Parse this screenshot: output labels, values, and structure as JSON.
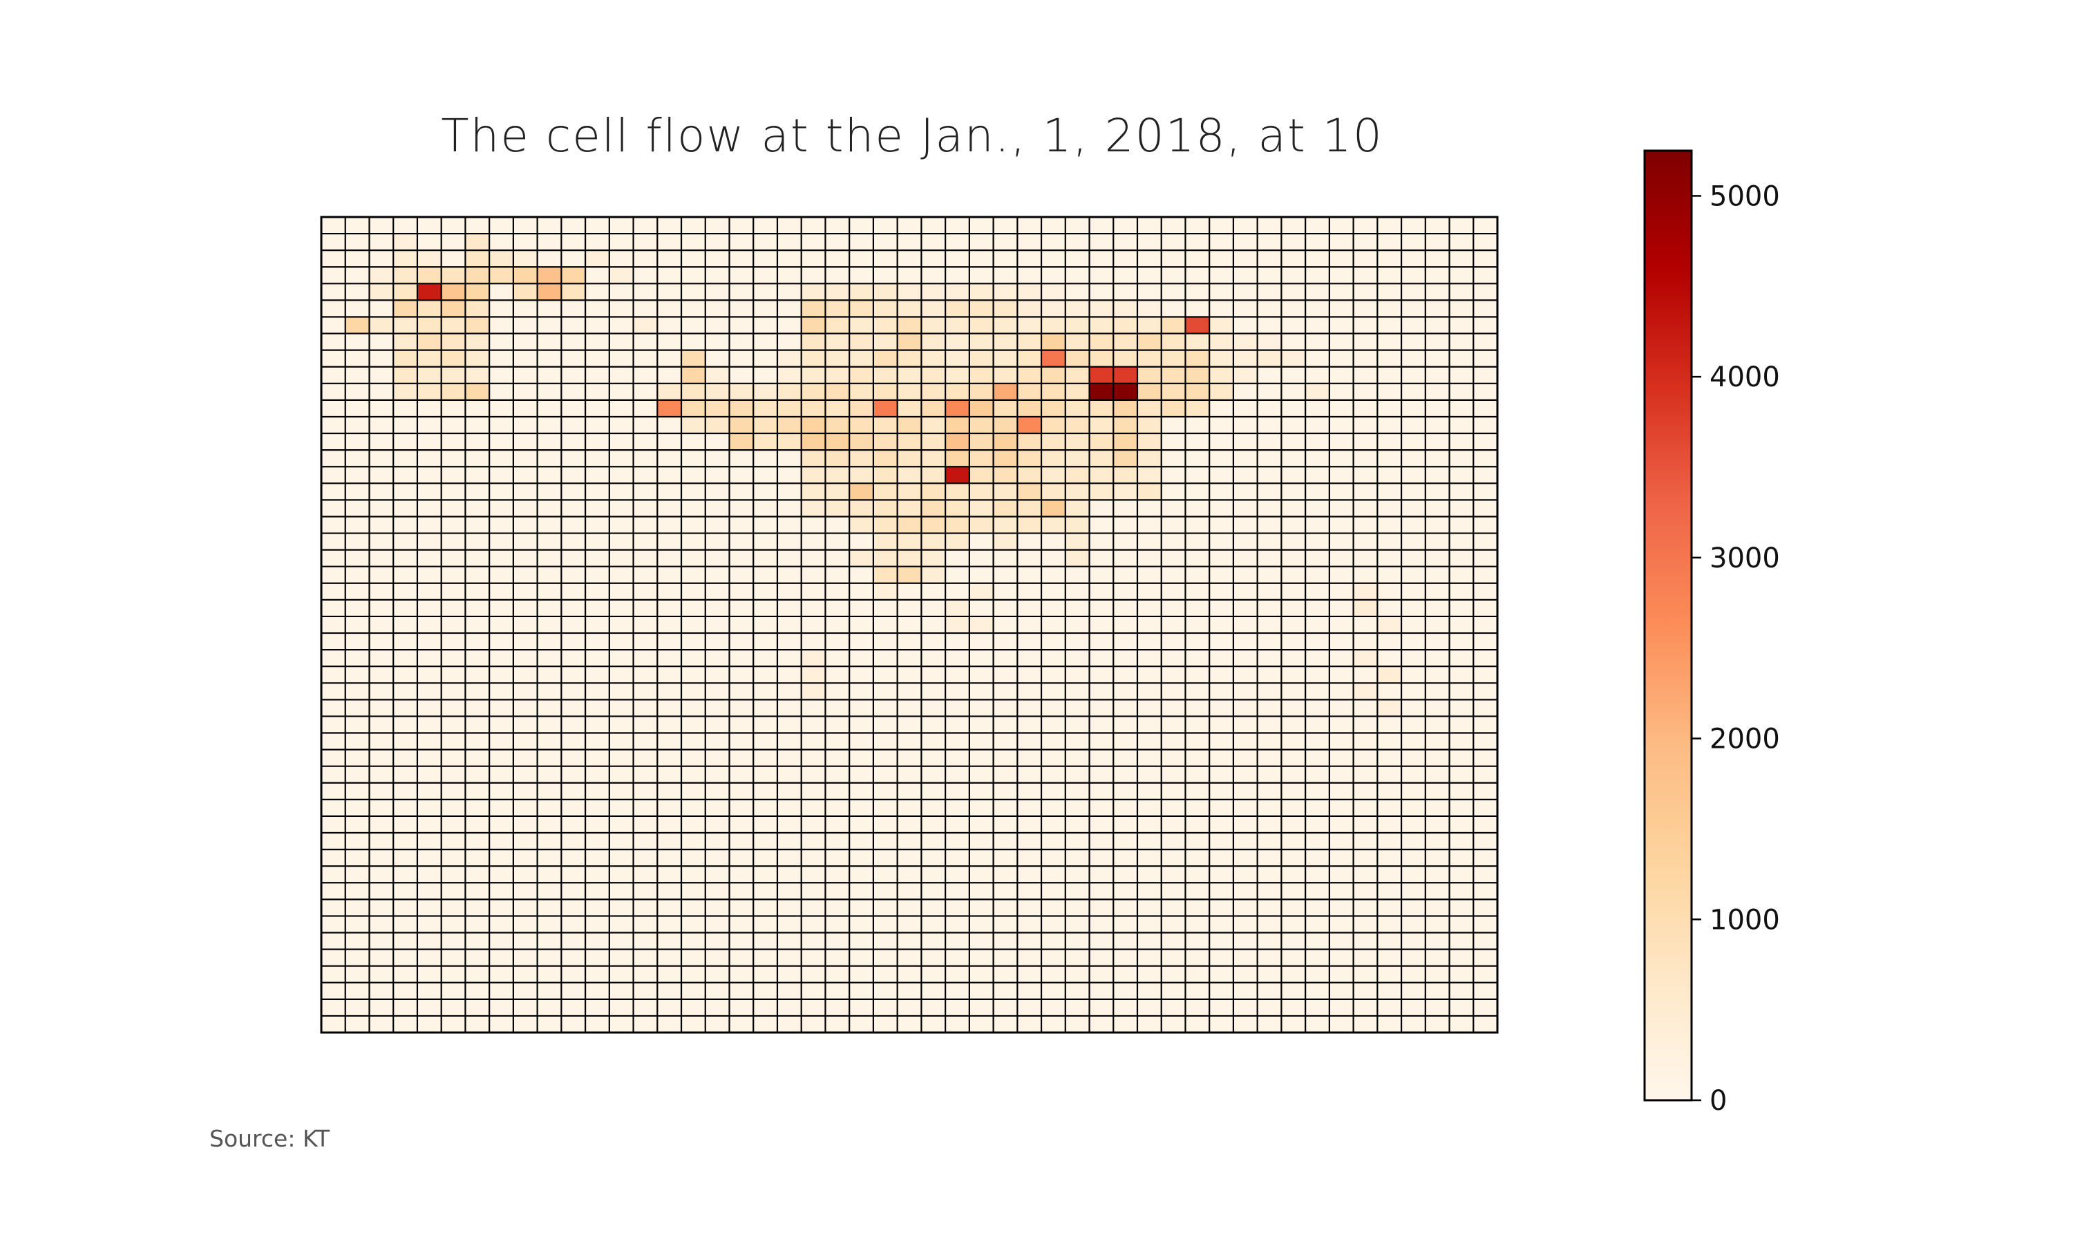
{
  "source_note": "Source: KT",
  "chart_data": {
    "type": "heatmap",
    "title": "The cell flow at the Jan., 1, 2018, at 10",
    "xlabel": "",
    "ylabel": "",
    "grid": true,
    "n_cols": 49,
    "n_rows": 49,
    "colormap": "OrRd",
    "colormap_stops": [
      "#fff7ec",
      "#fee8c8",
      "#fdd49e",
      "#fdbb84",
      "#fc8d59",
      "#ef6548",
      "#d7301f",
      "#b30000",
      "#7f0000"
    ],
    "grid_line_color": "#000000",
    "colorbar": {
      "range": [
        0,
        5250
      ],
      "ticks": [
        0,
        1000,
        2000,
        3000,
        4000,
        5000
      ],
      "tick_labels": [
        "0",
        "1000",
        "2000",
        "3000",
        "4000",
        "5000"
      ],
      "position": "right"
    },
    "baseline_value": 100,
    "cells": [
      [
        1,
        3,
        300
      ],
      [
        1,
        6,
        600
      ],
      [
        2,
        3,
        400
      ],
      [
        2,
        4,
        300
      ],
      [
        2,
        6,
        700
      ],
      [
        2,
        7,
        500
      ],
      [
        2,
        8,
        300
      ],
      [
        2,
        11,
        300
      ],
      [
        3,
        2,
        300
      ],
      [
        3,
        3,
        600
      ],
      [
        3,
        4,
        900
      ],
      [
        3,
        5,
        800
      ],
      [
        3,
        6,
        1000
      ],
      [
        3,
        7,
        900
      ],
      [
        3,
        8,
        1200
      ],
      [
        3,
        9,
        1800
      ],
      [
        3,
        10,
        1200
      ],
      [
        3,
        12,
        300
      ],
      [
        4,
        2,
        400
      ],
      [
        4,
        3,
        700
      ],
      [
        4,
        4,
        4200
      ],
      [
        4,
        5,
        1700
      ],
      [
        4,
        6,
        1200
      ],
      [
        4,
        8,
        800
      ],
      [
        4,
        9,
        2000
      ],
      [
        4,
        10,
        800
      ],
      [
        4,
        20,
        400
      ],
      [
        4,
        21,
        400
      ],
      [
        4,
        22,
        500
      ],
      [
        4,
        23,
        500
      ],
      [
        4,
        24,
        300
      ],
      [
        4,
        25,
        300
      ],
      [
        4,
        26,
        300
      ],
      [
        4,
        27,
        400
      ],
      [
        4,
        28,
        300
      ],
      [
        4,
        29,
        300
      ],
      [
        4,
        30,
        200
      ],
      [
        5,
        3,
        1100
      ],
      [
        5,
        4,
        800
      ],
      [
        5,
        5,
        1200
      ],
      [
        5,
        6,
        700
      ],
      [
        5,
        20,
        1000
      ],
      [
        5,
        21,
        800
      ],
      [
        5,
        22,
        800
      ],
      [
        5,
        23,
        600
      ],
      [
        5,
        24,
        500
      ],
      [
        5,
        25,
        400
      ],
      [
        5,
        26,
        700
      ],
      [
        5,
        27,
        700
      ],
      [
        5,
        28,
        600
      ],
      [
        5,
        29,
        400
      ],
      [
        5,
        30,
        300
      ],
      [
        5,
        31,
        300
      ],
      [
        5,
        32,
        300
      ],
      [
        5,
        33,
        300
      ],
      [
        5,
        34,
        200
      ],
      [
        6,
        1,
        1200
      ],
      [
        6,
        2,
        500
      ],
      [
        6,
        3,
        500
      ],
      [
        6,
        4,
        700
      ],
      [
        6,
        5,
        600
      ],
      [
        6,
        6,
        900
      ],
      [
        6,
        13,
        300
      ],
      [
        6,
        20,
        1100
      ],
      [
        6,
        21,
        700
      ],
      [
        6,
        22,
        500
      ],
      [
        6,
        23,
        600
      ],
      [
        6,
        24,
        900
      ],
      [
        6,
        25,
        500
      ],
      [
        6,
        26,
        500
      ],
      [
        6,
        27,
        600
      ],
      [
        6,
        28,
        500
      ],
      [
        6,
        29,
        400
      ],
      [
        6,
        30,
        500
      ],
      [
        6,
        31,
        500
      ],
      [
        6,
        32,
        500
      ],
      [
        6,
        33,
        600
      ],
      [
        6,
        34,
        500
      ],
      [
        6,
        35,
        900
      ],
      [
        6,
        36,
        3600
      ],
      [
        6,
        37,
        400
      ],
      [
        7,
        3,
        500
      ],
      [
        7,
        4,
        900
      ],
      [
        7,
        5,
        700
      ],
      [
        7,
        6,
        500
      ],
      [
        7,
        20,
        700
      ],
      [
        7,
        21,
        500
      ],
      [
        7,
        22,
        600
      ],
      [
        7,
        23,
        500
      ],
      [
        7,
        24,
        1100
      ],
      [
        7,
        25,
        500
      ],
      [
        7,
        26,
        400
      ],
      [
        7,
        27,
        500
      ],
      [
        7,
        28,
        500
      ],
      [
        7,
        29,
        600
      ],
      [
        7,
        30,
        1300
      ],
      [
        7,
        31,
        600
      ],
      [
        7,
        32,
        800
      ],
      [
        7,
        33,
        700
      ],
      [
        7,
        34,
        1000
      ],
      [
        7,
        35,
        700
      ],
      [
        7,
        36,
        500
      ],
      [
        7,
        37,
        400
      ],
      [
        7,
        38,
        300
      ],
      [
        7,
        39,
        200
      ],
      [
        8,
        3,
        700
      ],
      [
        8,
        4,
        600
      ],
      [
        8,
        5,
        800
      ],
      [
        8,
        6,
        500
      ],
      [
        8,
        15,
        1000
      ],
      [
        8,
        19,
        300
      ],
      [
        8,
        20,
        600
      ],
      [
        8,
        21,
        500
      ],
      [
        8,
        22,
        500
      ],
      [
        8,
        23,
        900
      ],
      [
        8,
        24,
        700
      ],
      [
        8,
        25,
        500
      ],
      [
        8,
        26,
        400
      ],
      [
        8,
        27,
        600
      ],
      [
        8,
        28,
        500
      ],
      [
        8,
        29,
        700
      ],
      [
        8,
        30,
        3000
      ],
      [
        8,
        31,
        900
      ],
      [
        8,
        32,
        800
      ],
      [
        8,
        33,
        700
      ],
      [
        8,
        34,
        700
      ],
      [
        8,
        35,
        700
      ],
      [
        8,
        36,
        900
      ],
      [
        8,
        37,
        400
      ],
      [
        8,
        38,
        300
      ],
      [
        8,
        39,
        400
      ],
      [
        8,
        40,
        300
      ],
      [
        9,
        3,
        600
      ],
      [
        9,
        4,
        500
      ],
      [
        9,
        5,
        500
      ],
      [
        9,
        6,
        400
      ],
      [
        9,
        15,
        1200
      ],
      [
        9,
        16,
        300
      ],
      [
        9,
        19,
        300
      ],
      [
        9,
        20,
        500
      ],
      [
        9,
        21,
        500
      ],
      [
        9,
        22,
        700
      ],
      [
        9,
        23,
        600
      ],
      [
        9,
        24,
        500
      ],
      [
        9,
        25,
        600
      ],
      [
        9,
        26,
        500
      ],
      [
        9,
        27,
        700
      ],
      [
        9,
        28,
        600
      ],
      [
        9,
        29,
        800
      ],
      [
        9,
        30,
        1000
      ],
      [
        9,
        31,
        700
      ],
      [
        9,
        32,
        3800
      ],
      [
        9,
        33,
        3800
      ],
      [
        9,
        34,
        900
      ],
      [
        9,
        35,
        900
      ],
      [
        9,
        36,
        1000
      ],
      [
        9,
        37,
        500
      ],
      [
        9,
        38,
        300
      ],
      [
        10,
        3,
        500
      ],
      [
        10,
        4,
        600
      ],
      [
        10,
        5,
        800
      ],
      [
        10,
        6,
        1100
      ],
      [
        10,
        14,
        500
      ],
      [
        10,
        15,
        700
      ],
      [
        10,
        16,
        500
      ],
      [
        10,
        17,
        500
      ],
      [
        10,
        18,
        400
      ],
      [
        10,
        19,
        600
      ],
      [
        10,
        20,
        800
      ],
      [
        10,
        21,
        900
      ],
      [
        10,
        22,
        700
      ],
      [
        10,
        23,
        800
      ],
      [
        10,
        24,
        600
      ],
      [
        10,
        25,
        700
      ],
      [
        10,
        26,
        800
      ],
      [
        10,
        27,
        900
      ],
      [
        10,
        28,
        2200
      ],
      [
        10,
        29,
        900
      ],
      [
        10,
        30,
        900
      ],
      [
        10,
        31,
        700
      ],
      [
        10,
        32,
        5200
      ],
      [
        10,
        33,
        5200
      ],
      [
        10,
        34,
        1100
      ],
      [
        10,
        35,
        900
      ],
      [
        10,
        36,
        1000
      ],
      [
        10,
        37,
        600
      ],
      [
        10,
        41,
        300
      ],
      [
        11,
        14,
        2700
      ],
      [
        11,
        15,
        1000
      ],
      [
        11,
        16,
        900
      ],
      [
        11,
        17,
        1000
      ],
      [
        11,
        18,
        700
      ],
      [
        11,
        19,
        800
      ],
      [
        11,
        20,
        800
      ],
      [
        11,
        21,
        700
      ],
      [
        11,
        22,
        900
      ],
      [
        11,
        23,
        2900
      ],
      [
        11,
        24,
        700
      ],
      [
        11,
        25,
        1000
      ],
      [
        11,
        26,
        2700
      ],
      [
        11,
        27,
        1500
      ],
      [
        11,
        28,
        900
      ],
      [
        11,
        29,
        1100
      ],
      [
        11,
        30,
        1000
      ],
      [
        11,
        31,
        700
      ],
      [
        11,
        32,
        800
      ],
      [
        11,
        33,
        1200
      ],
      [
        11,
        34,
        700
      ],
      [
        11,
        35,
        900
      ],
      [
        11,
        36,
        700
      ],
      [
        12,
        15,
        500
      ],
      [
        12,
        16,
        600
      ],
      [
        12,
        17,
        1100
      ],
      [
        12,
        18,
        800
      ],
      [
        12,
        19,
        1000
      ],
      [
        12,
        20,
        1300
      ],
      [
        12,
        21,
        1000
      ],
      [
        12,
        22,
        900
      ],
      [
        12,
        23,
        800
      ],
      [
        12,
        24,
        1000
      ],
      [
        12,
        25,
        600
      ],
      [
        12,
        26,
        1300
      ],
      [
        12,
        27,
        1000
      ],
      [
        12,
        28,
        1100
      ],
      [
        12,
        29,
        2700
      ],
      [
        12,
        30,
        900
      ],
      [
        12,
        31,
        800
      ],
      [
        12,
        32,
        600
      ],
      [
        12,
        33,
        1000
      ],
      [
        12,
        34,
        600
      ],
      [
        13,
        17,
        1200
      ],
      [
        13,
        18,
        700
      ],
      [
        13,
        19,
        700
      ],
      [
        13,
        20,
        1400
      ],
      [
        13,
        21,
        1300
      ],
      [
        13,
        22,
        1100
      ],
      [
        13,
        23,
        900
      ],
      [
        13,
        24,
        800
      ],
      [
        13,
        25,
        700
      ],
      [
        13,
        26,
        1800
      ],
      [
        13,
        27,
        1000
      ],
      [
        13,
        28,
        1400
      ],
      [
        13,
        29,
        900
      ],
      [
        13,
        30,
        700
      ],
      [
        13,
        31,
        600
      ],
      [
        13,
        32,
        800
      ],
      [
        13,
        33,
        1200
      ],
      [
        13,
        34,
        600
      ],
      [
        14,
        20,
        700
      ],
      [
        14,
        21,
        800
      ],
      [
        14,
        22,
        700
      ],
      [
        14,
        23,
        900
      ],
      [
        14,
        24,
        700
      ],
      [
        14,
        25,
        600
      ],
      [
        14,
        26,
        1200
      ],
      [
        14,
        27,
        900
      ],
      [
        14,
        28,
        1200
      ],
      [
        14,
        29,
        900
      ],
      [
        14,
        30,
        600
      ],
      [
        14,
        31,
        500
      ],
      [
        14,
        32,
        600
      ],
      [
        14,
        33,
        1100
      ],
      [
        14,
        34,
        500
      ],
      [
        15,
        20,
        500
      ],
      [
        15,
        21,
        500
      ],
      [
        15,
        22,
        500
      ],
      [
        15,
        23,
        700
      ],
      [
        15,
        24,
        500
      ],
      [
        15,
        25,
        600
      ],
      [
        15,
        26,
        4300
      ],
      [
        15,
        27,
        800
      ],
      [
        15,
        28,
        900
      ],
      [
        15,
        29,
        700
      ],
      [
        15,
        30,
        500
      ],
      [
        15,
        31,
        600
      ],
      [
        15,
        32,
        500
      ],
      [
        15,
        33,
        600
      ],
      [
        15,
        34,
        400
      ],
      [
        16,
        20,
        500
      ],
      [
        16,
        21,
        500
      ],
      [
        16,
        22,
        1500
      ],
      [
        16,
        23,
        700
      ],
      [
        16,
        24,
        600
      ],
      [
        16,
        25,
        800
      ],
      [
        16,
        26,
        700
      ],
      [
        16,
        27,
        600
      ],
      [
        16,
        28,
        600
      ],
      [
        16,
        29,
        1000
      ],
      [
        16,
        30,
        600
      ],
      [
        16,
        31,
        500
      ],
      [
        16,
        32,
        500
      ],
      [
        16,
        33,
        400
      ],
      [
        16,
        34,
        600
      ],
      [
        17,
        20,
        400
      ],
      [
        17,
        21,
        500
      ],
      [
        17,
        22,
        600
      ],
      [
        17,
        23,
        700
      ],
      [
        17,
        24,
        600
      ],
      [
        17,
        25,
        900
      ],
      [
        17,
        26,
        700
      ],
      [
        17,
        27,
        500
      ],
      [
        17,
        28,
        800
      ],
      [
        17,
        29,
        700
      ],
      [
        17,
        30,
        1500
      ],
      [
        17,
        31,
        500
      ],
      [
        18,
        22,
        500
      ],
      [
        18,
        23,
        700
      ],
      [
        18,
        24,
        900
      ],
      [
        18,
        25,
        900
      ],
      [
        18,
        26,
        800
      ],
      [
        18,
        27,
        600
      ],
      [
        18,
        28,
        500
      ],
      [
        18,
        29,
        600
      ],
      [
        18,
        30,
        500
      ],
      [
        18,
        31,
        500
      ],
      [
        19,
        23,
        500
      ],
      [
        19,
        24,
        500
      ],
      [
        19,
        25,
        500
      ],
      [
        19,
        26,
        500
      ],
      [
        19,
        28,
        400
      ],
      [
        19,
        31,
        400
      ],
      [
        20,
        22,
        400
      ],
      [
        20,
        23,
        500
      ],
      [
        20,
        24,
        500
      ],
      [
        20,
        25,
        400
      ],
      [
        20,
        31,
        400
      ],
      [
        21,
        23,
        800
      ],
      [
        21,
        24,
        1000
      ],
      [
        21,
        25,
        400
      ],
      [
        22,
        23,
        300
      ],
      [
        22,
        27,
        300
      ],
      [
        22,
        43,
        300
      ],
      [
        23,
        26,
        300
      ],
      [
        23,
        43,
        400
      ],
      [
        24,
        26,
        300
      ],
      [
        24,
        44,
        300
      ],
      [
        24,
        27,
        300
      ],
      [
        26,
        20,
        300
      ],
      [
        26,
        43,
        300
      ],
      [
        27,
        20,
        300
      ],
      [
        27,
        44,
        400
      ],
      [
        28,
        20,
        300
      ],
      [
        28,
        43,
        300
      ],
      [
        29,
        44,
        300
      ]
    ]
  }
}
